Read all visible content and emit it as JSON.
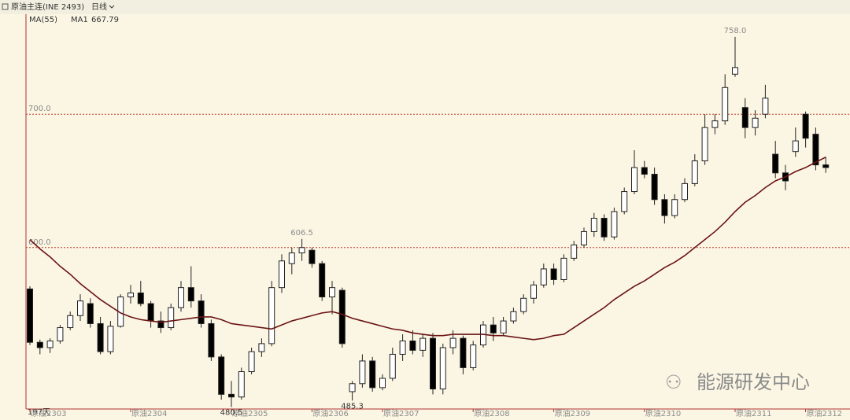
{
  "chart_data": {
    "type": "candlestick",
    "title": "原油主连(INE 2493)",
    "period": "日线",
    "indicator": "MA(55)",
    "day_count": "197天",
    "watermark": "能源研发中心",
    "categories": [
      "原油2303",
      null,
      null,
      null,
      null,
      null,
      null,
      null,
      null,
      null,
      "原油2304",
      null,
      null,
      null,
      null,
      null,
      null,
      null,
      null,
      null,
      "原油2305",
      null,
      null,
      null,
      null,
      null,
      null,
      null,
      "原油2306",
      null,
      null,
      null,
      null,
      null,
      null,
      "原油2307",
      null,
      null,
      null,
      null,
      null,
      null,
      null,
      null,
      "原油2308",
      null,
      null,
      null,
      null,
      null,
      null,
      null,
      "原油2309",
      null,
      null,
      null,
      null,
      null,
      null,
      null,
      null,
      "原油2310",
      null,
      null,
      null,
      null,
      null,
      null,
      null,
      null,
      "原油2311",
      null,
      null,
      null,
      null,
      null,
      null,
      "原油2312",
      null,
      null
    ],
    "open": [
      569,
      529,
      525,
      530,
      540,
      549,
      558,
      543,
      522,
      541,
      563,
      566,
      558,
      545,
      540,
      555,
      570,
      560,
      543,
      518,
      490,
      488,
      507,
      522,
      528,
      570,
      588,
      596,
      598,
      588,
      563,
      568,
      492,
      498,
      515,
      495,
      502,
      520,
      530,
      523,
      532,
      494,
      525,
      532,
      510,
      527,
      542,
      536,
      545,
      552,
      562,
      572,
      584,
      576,
      592,
      602,
      612,
      622,
      608,
      627,
      642,
      660,
      655,
      636,
      624,
      636,
      648,
      665,
      690,
      695,
      730,
      705,
      690,
      700,
      670,
      656,
      672,
      700,
      685,
      662
    ],
    "high": [
      571,
      531,
      532,
      542,
      552,
      565,
      562,
      548,
      545,
      565,
      572,
      575,
      560,
      552,
      558,
      575,
      586,
      565,
      546,
      520,
      500,
      510,
      525,
      532,
      575,
      595,
      600,
      606.5,
      600,
      590,
      575,
      570,
      500,
      520,
      518,
      505,
      525,
      535,
      538,
      535,
      536,
      528,
      538,
      534,
      530,
      545,
      548,
      548,
      555,
      565,
      575,
      588,
      588,
      595,
      605,
      615,
      626,
      625,
      630,
      645,
      673,
      665,
      660,
      640,
      640,
      652,
      670,
      700,
      700,
      730,
      758.0,
      712,
      703,
      722,
      680,
      662,
      690,
      702,
      690,
      668
    ],
    "low": [
      527,
      520,
      521,
      528,
      538,
      545,
      540,
      520,
      520,
      540,
      558,
      556,
      540,
      536,
      538,
      552,
      555,
      540,
      515,
      486,
      480.5,
      486,
      505,
      518,
      526,
      566,
      580,
      590,
      585,
      560,
      550,
      525,
      485.3,
      495,
      492,
      493,
      500,
      515,
      520,
      518,
      490,
      490,
      520,
      505,
      508,
      525,
      530,
      534,
      543,
      550,
      558,
      570,
      572,
      574,
      590,
      600,
      608,
      605,
      606,
      625,
      640,
      652,
      632,
      618,
      622,
      634,
      646,
      662,
      685,
      692,
      728,
      682,
      684,
      697,
      652,
      643,
      668,
      675,
      658,
      656
    ],
    "close": [
      529,
      525,
      530,
      540,
      549,
      560,
      543,
      522,
      541,
      563,
      566,
      558,
      545,
      540,
      555,
      570,
      560,
      543,
      518,
      490,
      488,
      507,
      522,
      528,
      570,
      590,
      596,
      600,
      588,
      563,
      570,
      528,
      498,
      515,
      495,
      502,
      520,
      530,
      523,
      532,
      494,
      525,
      532,
      510,
      527,
      542,
      536,
      545,
      552,
      562,
      572,
      584,
      576,
      592,
      602,
      612,
      622,
      608,
      627,
      642,
      660,
      655,
      636,
      624,
      636,
      648,
      665,
      690,
      695,
      720,
      735,
      690,
      697,
      712,
      656,
      650,
      680,
      682,
      662,
      660
    ],
    "up_color": "#ffffff",
    "down_color": "#000000",
    "outline_color": "#222222",
    "ma": {
      "name": "MA1",
      "color": "#6b1414",
      "values": [
        606,
        599,
        593,
        586,
        580,
        573,
        567,
        561,
        556,
        551,
        548,
        546,
        545,
        544,
        545,
        546,
        547,
        548,
        548,
        546,
        543,
        542,
        541,
        540,
        539,
        542,
        545,
        547,
        549,
        551,
        552,
        550,
        547,
        545,
        543,
        541,
        539,
        538,
        536,
        535,
        534,
        534,
        535,
        535,
        535,
        535,
        534,
        534,
        533,
        532,
        531,
        532,
        534,
        535,
        540,
        545,
        550,
        555,
        561,
        566,
        571,
        575,
        580,
        585,
        589,
        594,
        600,
        606,
        612,
        619,
        627,
        634,
        639,
        645,
        650,
        653,
        657,
        660,
        664,
        667.79
      ]
    },
    "annotations": [
      {
        "value": 606.5,
        "label": "606.5"
      },
      {
        "value": 758.0,
        "label": "758.0"
      },
      {
        "value": 480.5,
        "label": "480.5"
      },
      {
        "value": 485.3,
        "label": "485.3"
      }
    ],
    "ylim": [
      479,
      775
    ],
    "yticks": [
      {
        "value": 600,
        "label": "600.0"
      },
      {
        "value": 700,
        "label": "700.0"
      }
    ],
    "grid": true,
    "grid_color": "#c0392b"
  }
}
